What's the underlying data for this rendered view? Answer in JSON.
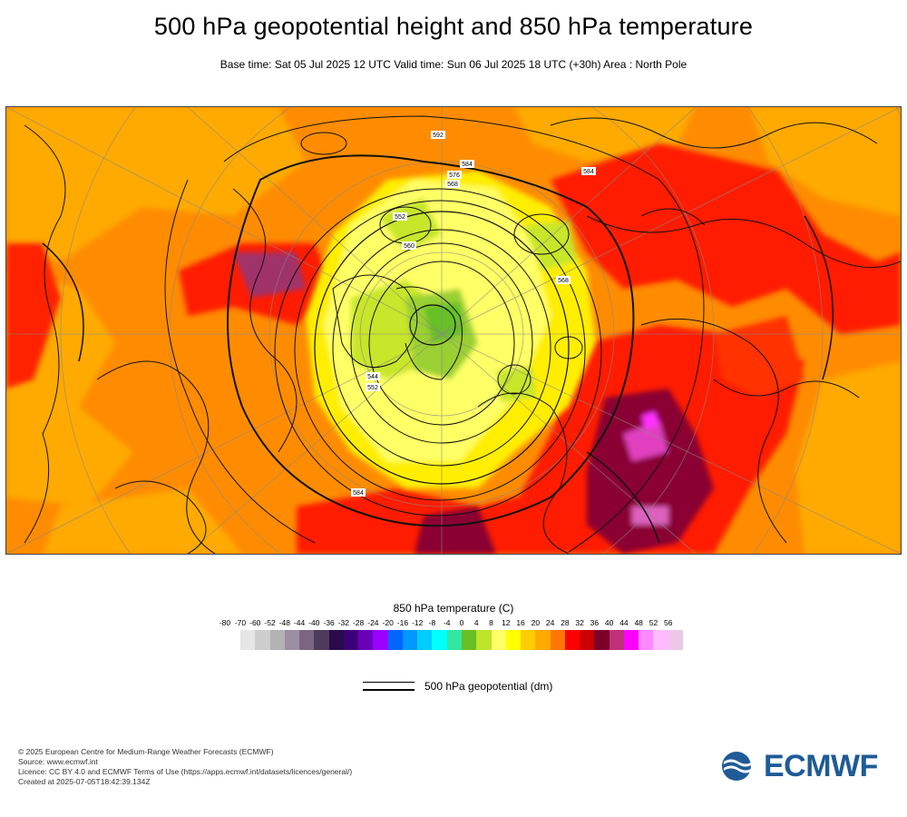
{
  "header": {
    "title": "500 hPa geopotential height and 850 hPa temperature",
    "subtitle": "Base time: Sat 05 Jul 2025 12 UTC Valid time: Sun 06 Jul 2025 18 UTC (+30h) Area : North Pole"
  },
  "map": {
    "projection": "polar-stereographic",
    "area": "North Pole",
    "contour_labels": [
      "552",
      "560",
      "568",
      "576",
      "584",
      "592",
      "544",
      "584",
      "584",
      "552",
      "568"
    ]
  },
  "legend": {
    "title": "850 hPa temperature (C)",
    "ticks": [
      "-80",
      "-70",
      "-60",
      "-52",
      "-48",
      "-44",
      "-40",
      "-36",
      "-32",
      "-28",
      "-24",
      "-20",
      "-16",
      "-12",
      "-8",
      "-4",
      "0",
      "4",
      "8",
      "12",
      "16",
      "20",
      "24",
      "28",
      "32",
      "36",
      "40",
      "44",
      "48",
      "52",
      "56"
    ],
    "colors": [
      "#e6e6e6",
      "#cdcdcd",
      "#b3b3b3",
      "#9b8fa3",
      "#7b6580",
      "#4e3a5a",
      "#2a0a4a",
      "#3c0078",
      "#6a00b8",
      "#9900ff",
      "#0066ff",
      "#0099ff",
      "#00ccff",
      "#00ffff",
      "#33e6a0",
      "#66c026",
      "#bde52a",
      "#ffff66",
      "#ffff00",
      "#ffcc00",
      "#ffaa00",
      "#ff7700",
      "#ff0000",
      "#cc0000",
      "#7a002a",
      "#c0307a",
      "#ff00ff",
      "#ff88ff",
      "#ffbbff",
      "#ecc7e8"
    ],
    "geopotential_label": "500 hPa geopotential (dm)"
  },
  "footer": {
    "lines": [
      "© 2025 European Centre for Medium-Range Weather Forecasts (ECMWF)",
      "Source: www.ecmwf.int",
      "Licence: CC BY 4.0 and ECMWF Terms of Use (https://apps.ecmwf.int/datasets/licences/general/)",
      "Created at 2025-07-05T18:42:39.134Z"
    ]
  },
  "logo": {
    "text": "ECMWF",
    "color": "#1f5b97"
  }
}
